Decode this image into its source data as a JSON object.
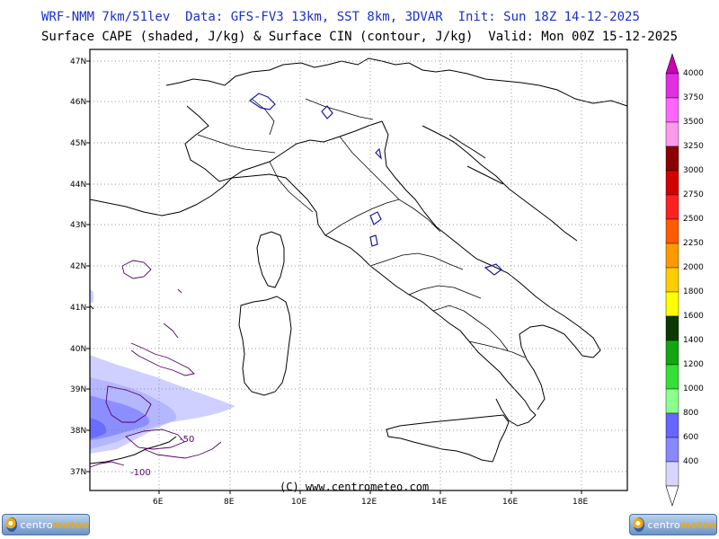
{
  "header": {
    "line1": "WRF-NMM 7km/51lev  Data: GFS-FV3 13km, SST 8km, 3DVAR  Init: Sun 18Z 14-12-2025",
    "line2": "Surface CAPE (shaded, J/kg) & Surface CIN (contour, J/kg)  Valid: Mon 00Z 15-12-2025"
  },
  "map": {
    "lat_labels": [
      "47N",
      "46N",
      "45N",
      "44N",
      "43N",
      "42N",
      "41N",
      "40N",
      "39N",
      "38N",
      "37N"
    ],
    "lon_labels": [
      "6E",
      "8E",
      "10E",
      "12E",
      "14E",
      "16E",
      "18E"
    ],
    "copyright": "(C) www.centrometeo.com",
    "cin_contour_labels": [
      "-50",
      "-100"
    ]
  },
  "colorbar": {
    "labels": [
      "4000",
      "3750",
      "3500",
      "3250",
      "3000",
      "2750",
      "2500",
      "2250",
      "2000",
      "1800",
      "1600",
      "1400",
      "1200",
      "1000",
      "800",
      "600",
      "400"
    ],
    "colors": [
      "#cc00b8",
      "#e22ee2",
      "#ff66ff",
      "#ff99ee",
      "#8b0000",
      "#d40000",
      "#ff2020",
      "#ff5a00",
      "#ff9900",
      "#ffcc00",
      "#ffff00",
      "#0b3a00",
      "#11a611",
      "#36df36",
      "#8cff8c",
      "#6666ff",
      "#8888ff",
      "#d6d6ff"
    ]
  },
  "logos": {
    "text_left": "centro",
    "text_right": "meteo"
  }
}
